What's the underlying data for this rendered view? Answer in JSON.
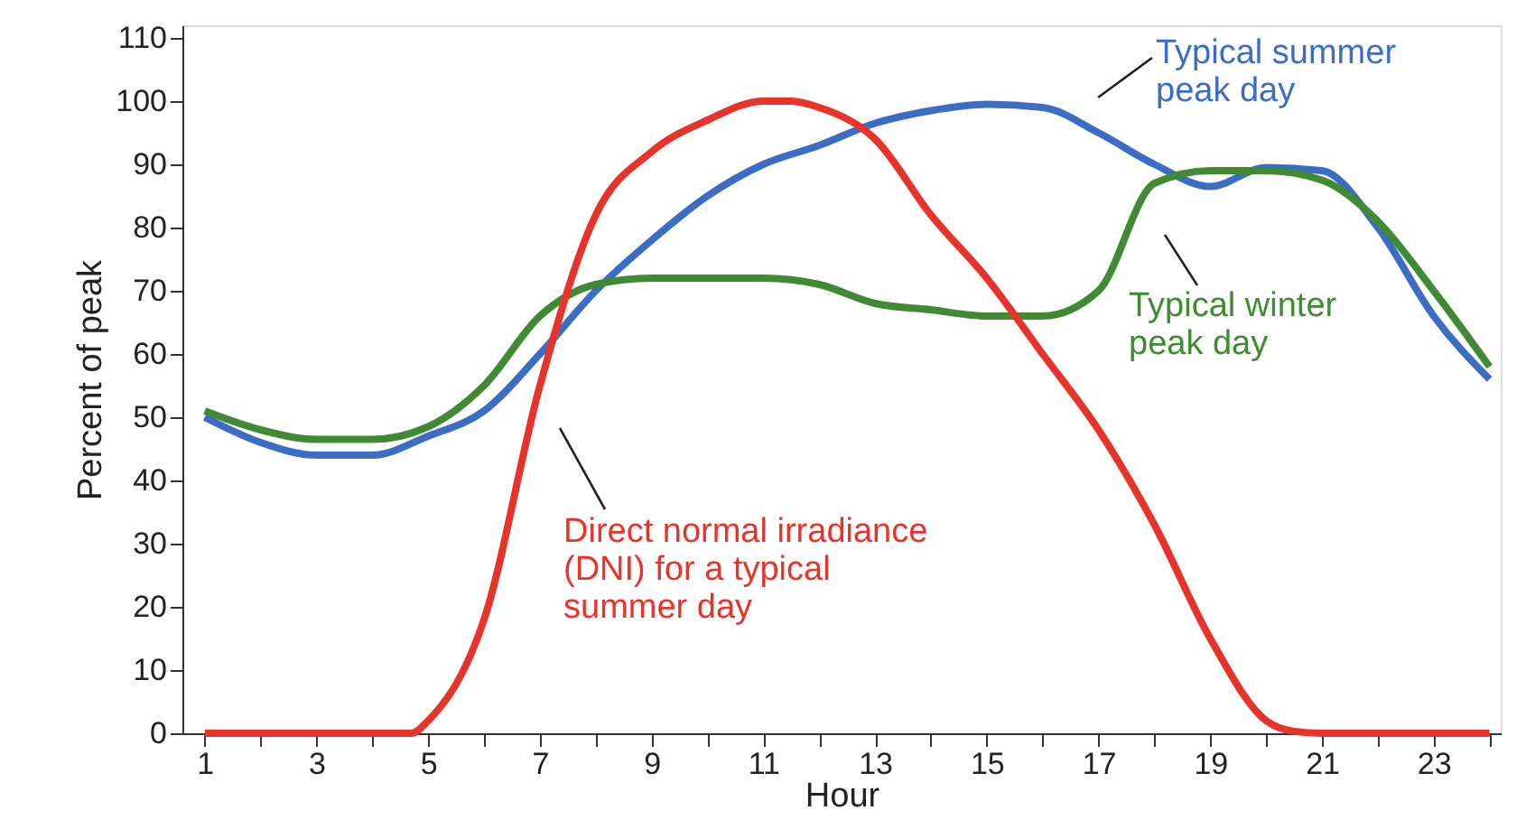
{
  "chart_data": {
    "type": "line",
    "xlabel": "Hour",
    "ylabel": "Percent of peak",
    "x": [
      1,
      2,
      3,
      4,
      5,
      6,
      7,
      8,
      9,
      10,
      11,
      12,
      13,
      14,
      15,
      16,
      17,
      18,
      19,
      20,
      21,
      22,
      23,
      24
    ],
    "series": [
      {
        "color": "#3c6dc4",
        "values": [
          50,
          46,
          44,
          44,
          47,
          51,
          60,
          70,
          78,
          85,
          90,
          93,
          96.5,
          98.5,
          99.5,
          99,
          95,
          90,
          86.5,
          89.5,
          89,
          80,
          66,
          56
        ]
      },
      {
        "color": "#3f8a33",
        "values": [
          51,
          48,
          46.5,
          46.5,
          48.5,
          55,
          66,
          71,
          72,
          72,
          72,
          71,
          68,
          67,
          66,
          66,
          70,
          87,
          89,
          89,
          87.5,
          81,
          70,
          58
        ]
      },
      {
        "color": "#e8332a",
        "x": [
          1,
          2,
          3,
          4,
          4.7,
          5,
          6,
          7,
          8,
          9,
          10,
          11,
          11.5,
          12,
          13,
          14,
          15,
          16,
          17,
          18,
          19,
          20,
          20.5,
          21,
          22,
          23,
          24
        ],
        "values": [
          0,
          0,
          0,
          0,
          0,
          2,
          18,
          55,
          82,
          92,
          97,
          100,
          100,
          99,
          94,
          82,
          72,
          60,
          48,
          33,
          15,
          2,
          0.3,
          0,
          0,
          0,
          0
        ]
      }
    ],
    "annotations": [
      "Typical summer\npeak day",
      "Typical winter\npeak day",
      "Direct normal irradiance\n(DNI) for a typical\nsummer day"
    ],
    "xlim": [
      0.6,
      24.2
    ],
    "xticks": [
      1,
      {
        "value": 2,
        "label": null
      },
      3,
      {
        "value": 4,
        "label": null
      },
      5,
      {
        "value": 6,
        "label": null
      },
      7,
      {
        "value": 8,
        "label": null
      },
      9,
      {
        "value": 10,
        "label": null
      },
      11,
      {
        "value": 12,
        "label": null
      },
      13,
      {
        "value": 14,
        "label": null
      },
      15,
      {
        "value": 16,
        "label": null
      },
      17,
      {
        "value": 18,
        "label": null
      },
      19,
      {
        "value": 20,
        "label": null
      },
      21,
      {
        "value": 22,
        "label": null
      },
      23,
      {
        "value": 24,
        "label": null
      }
    ],
    "ylim": [
      0,
      112
    ],
    "yticks": [
      0,
      10,
      20,
      30,
      40,
      50,
      60,
      70,
      80,
      90,
      100,
      110
    ],
    "grid": false,
    "line_style": "solid",
    "marker": "none"
  }
}
